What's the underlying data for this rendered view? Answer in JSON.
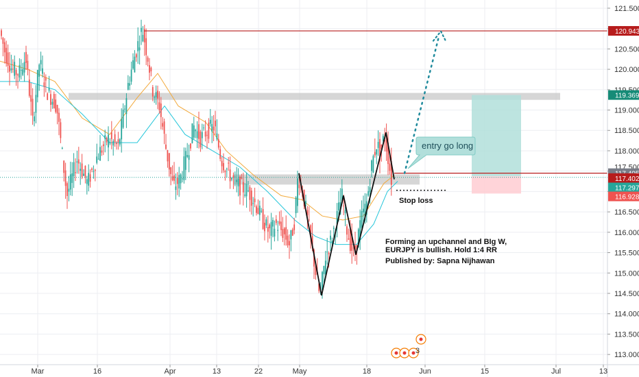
{
  "chart_data": {
    "type": "line",
    "title": "",
    "xlabel": "",
    "ylabel": "",
    "x_tick_labels": [
      "Mar",
      "16",
      "Apr",
      "13",
      "22",
      "May",
      "18",
      "Jun",
      "15",
      "Jul",
      "13"
    ],
    "ylim": [
      112.75,
      121.6
    ],
    "y_ticks": [
      113.0,
      113.5,
      114.0,
      114.5,
      115.0,
      115.5,
      116.0,
      116.5,
      117.0,
      117.5,
      118.0,
      118.5,
      119.0,
      119.5,
      120.0,
      120.5,
      121.0,
      121.5
    ],
    "grid": true,
    "series": [
      {
        "role": "price-candles",
        "up_color": "#26a69a",
        "down_color": "#ef5350",
        "points": [
          {
            "x": 0,
            "y": 121.1
          },
          {
            "x": 10,
            "y": 120.4
          },
          {
            "x": 20,
            "y": 120.0
          },
          {
            "x": 30,
            "y": 119.9
          },
          {
            "x": 40,
            "y": 120.3
          },
          {
            "x": 50,
            "y": 118.7
          },
          {
            "x": 60,
            "y": 120.2
          },
          {
            "x": 70,
            "y": 119.5
          },
          {
            "x": 85,
            "y": 119.1
          },
          {
            "x": 100,
            "y": 116.9
          },
          {
            "x": 115,
            "y": 117.8
          },
          {
            "x": 130,
            "y": 117.2
          },
          {
            "x": 145,
            "y": 117.9
          },
          {
            "x": 160,
            "y": 118.3
          },
          {
            "x": 175,
            "y": 118.1
          },
          {
            "x": 190,
            "y": 119.7
          },
          {
            "x": 200,
            "y": 120.4
          },
          {
            "x": 210,
            "y": 121.0
          },
          {
            "x": 218,
            "y": 120.3
          },
          {
            "x": 225,
            "y": 119.5
          },
          {
            "x": 235,
            "y": 119.1
          },
          {
            "x": 245,
            "y": 118.0
          },
          {
            "x": 255,
            "y": 117.1
          },
          {
            "x": 265,
            "y": 117.3
          },
          {
            "x": 275,
            "y": 117.9
          },
          {
            "x": 285,
            "y": 118.6
          },
          {
            "x": 295,
            "y": 118.3
          },
          {
            "x": 305,
            "y": 118.5
          },
          {
            "x": 315,
            "y": 118.6
          },
          {
            "x": 325,
            "y": 117.8
          },
          {
            "x": 335,
            "y": 117.5
          },
          {
            "x": 345,
            "y": 117.2
          },
          {
            "x": 355,
            "y": 117.1
          },
          {
            "x": 365,
            "y": 117.0
          },
          {
            "x": 375,
            "y": 116.7
          },
          {
            "x": 385,
            "y": 116.3
          },
          {
            "x": 395,
            "y": 116.0
          },
          {
            "x": 405,
            "y": 116.2
          },
          {
            "x": 415,
            "y": 116.0
          },
          {
            "x": 425,
            "y": 115.7
          },
          {
            "x": 432,
            "y": 116.3
          },
          {
            "x": 437,
            "y": 117.4
          },
          {
            "x": 445,
            "y": 116.9
          },
          {
            "x": 455,
            "y": 115.9
          },
          {
            "x": 462,
            "y": 115.1
          },
          {
            "x": 469,
            "y": 114.4
          },
          {
            "x": 477,
            "y": 115.4
          },
          {
            "x": 485,
            "y": 115.8
          },
          {
            "x": 493,
            "y": 116.3
          },
          {
            "x": 501,
            "y": 116.9
          },
          {
            "x": 509,
            "y": 116.0
          },
          {
            "x": 519,
            "y": 115.4
          },
          {
            "x": 529,
            "y": 116.3
          },
          {
            "x": 537,
            "y": 116.7
          },
          {
            "x": 545,
            "y": 117.7
          },
          {
            "x": 552,
            "y": 118.2
          },
          {
            "x": 557,
            "y": 117.9
          },
          {
            "x": 563,
            "y": 118.4
          },
          {
            "x": 568,
            "y": 117.9
          },
          {
            "x": 573,
            "y": 117.3
          }
        ]
      },
      {
        "role": "moving-average-fast",
        "color": "#f2a93b",
        "points": [
          {
            "x": 0,
            "y": 120.2
          },
          {
            "x": 40,
            "y": 120.0
          },
          {
            "x": 80,
            "y": 119.7
          },
          {
            "x": 120,
            "y": 118.8
          },
          {
            "x": 160,
            "y": 118.4
          },
          {
            "x": 200,
            "y": 119.3
          },
          {
            "x": 230,
            "y": 119.9
          },
          {
            "x": 260,
            "y": 119.1
          },
          {
            "x": 300,
            "y": 118.7
          },
          {
            "x": 330,
            "y": 118.0
          },
          {
            "x": 370,
            "y": 117.4
          },
          {
            "x": 410,
            "y": 116.9
          },
          {
            "x": 440,
            "y": 116.8
          },
          {
            "x": 470,
            "y": 116.4
          },
          {
            "x": 500,
            "y": 116.3
          },
          {
            "x": 530,
            "y": 116.4
          },
          {
            "x": 560,
            "y": 117.2
          },
          {
            "x": 575,
            "y": 117.4
          }
        ]
      },
      {
        "role": "moving-average-slow",
        "color": "#26c6da",
        "points": [
          {
            "x": 0,
            "y": 119.7
          },
          {
            "x": 40,
            "y": 119.7
          },
          {
            "x": 80,
            "y": 119.5
          },
          {
            "x": 120,
            "y": 118.9
          },
          {
            "x": 160,
            "y": 118.2
          },
          {
            "x": 200,
            "y": 118.2
          },
          {
            "x": 240,
            "y": 119.1
          },
          {
            "x": 270,
            "y": 118.4
          },
          {
            "x": 310,
            "y": 118.0
          },
          {
            "x": 350,
            "y": 117.6
          },
          {
            "x": 390,
            "y": 117.0
          },
          {
            "x": 430,
            "y": 116.3
          },
          {
            "x": 460,
            "y": 115.9
          },
          {
            "x": 490,
            "y": 115.7
          },
          {
            "x": 520,
            "y": 115.7
          },
          {
            "x": 545,
            "y": 116.2
          },
          {
            "x": 565,
            "y": 117.0
          },
          {
            "x": 580,
            "y": 117.25
          }
        ]
      }
    ],
    "price_tags": [
      {
        "value": "120.943",
        "y": 120.943,
        "color": "#b71c1c"
      },
      {
        "value": "119.369",
        "y": 119.369,
        "color": "#168b77"
      },
      {
        "value": "117.405",
        "y": 117.45,
        "color": "#787b86"
      },
      {
        "value": "117.402",
        "y": 117.33,
        "color": "#b71c1c"
      },
      {
        "value": "117.297",
        "y": 117.1,
        "color": "#26a69a"
      },
      {
        "value": "116.928",
        "y": 116.88,
        "color": "#ef5350"
      }
    ],
    "partial_tick_label": "117.500",
    "annotations": {
      "callout": "entry go long",
      "stop_loss": "Stop loss",
      "note_line1": "Forming an upchannel and BIg W,",
      "note_line2": "EURJPY is bullish. Hold 1:4 RR",
      "note_line3": "Published by: Sapna Nijhawan",
      "event_badge": "3"
    },
    "zones": [
      {
        "role": "resistance",
        "y_low": 119.25,
        "y_high": 119.42
      },
      {
        "role": "support",
        "y_low": 117.17,
        "y_high": 117.42
      }
    ],
    "target_box": {
      "y_low": 117.375,
      "y_high": 119.369
    },
    "risk_box": {
      "y_low": 116.95,
      "y_high": 117.375
    }
  }
}
